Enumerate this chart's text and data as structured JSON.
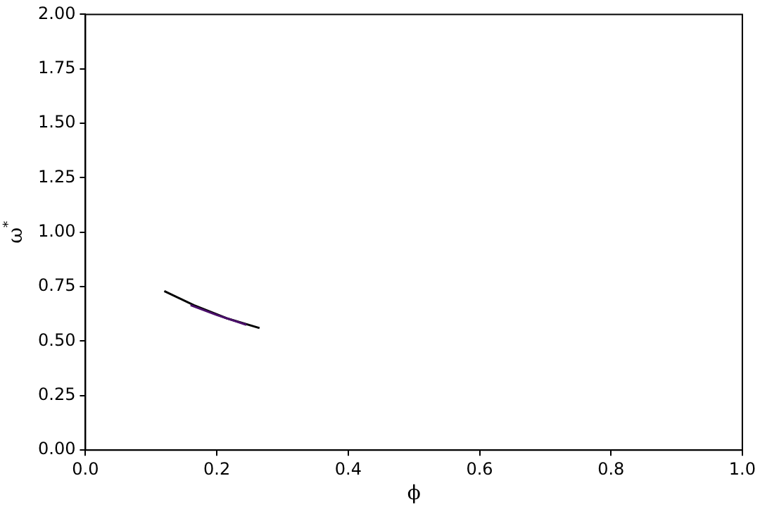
{
  "chart_data": {
    "type": "line",
    "xlabel": "ϕ",
    "ylabel": "ω$^{*}$",
    "xlim": [
      0,
      1
    ],
    "ylim": [
      0,
      2
    ],
    "xticks": [
      {
        "value": 0,
        "label": "0.0"
      },
      {
        "value": 0.2,
        "label": "0.2"
      },
      {
        "value": 0.4,
        "label": "0.4"
      },
      {
        "value": 0.6,
        "label": "0.6"
      },
      {
        "value": 0.8,
        "label": "0.8"
      },
      {
        "value": 1,
        "label": "1.0"
      }
    ],
    "yticks": [
      {
        "value": 0,
        "label": "0.00"
      },
      {
        "value": 0.25,
        "label": "0.25"
      },
      {
        "value": 0.5,
        "label": "0.50"
      },
      {
        "value": 0.75,
        "label": "0.75"
      },
      {
        "value": 1,
        "label": "1.00"
      },
      {
        "value": 1.25,
        "label": "1.25"
      },
      {
        "value": 1.5,
        "label": "1.50"
      },
      {
        "value": 1.75,
        "label": "1.75"
      },
      {
        "value": 2,
        "label": "2.00"
      }
    ],
    "grid": false,
    "legend": false,
    "series": [
      {
        "color": "#4b0f6b",
        "x": [
          0.16,
          0.2,
          0.245
        ],
        "values": [
          0.665,
          0.62,
          0.575
        ]
      },
      {
        "color": "#000000",
        "x": [
          0.12,
          0.165,
          0.215,
          0.265
        ],
        "values": [
          0.73,
          0.665,
          0.605,
          0.56
        ]
      }
    ]
  }
}
